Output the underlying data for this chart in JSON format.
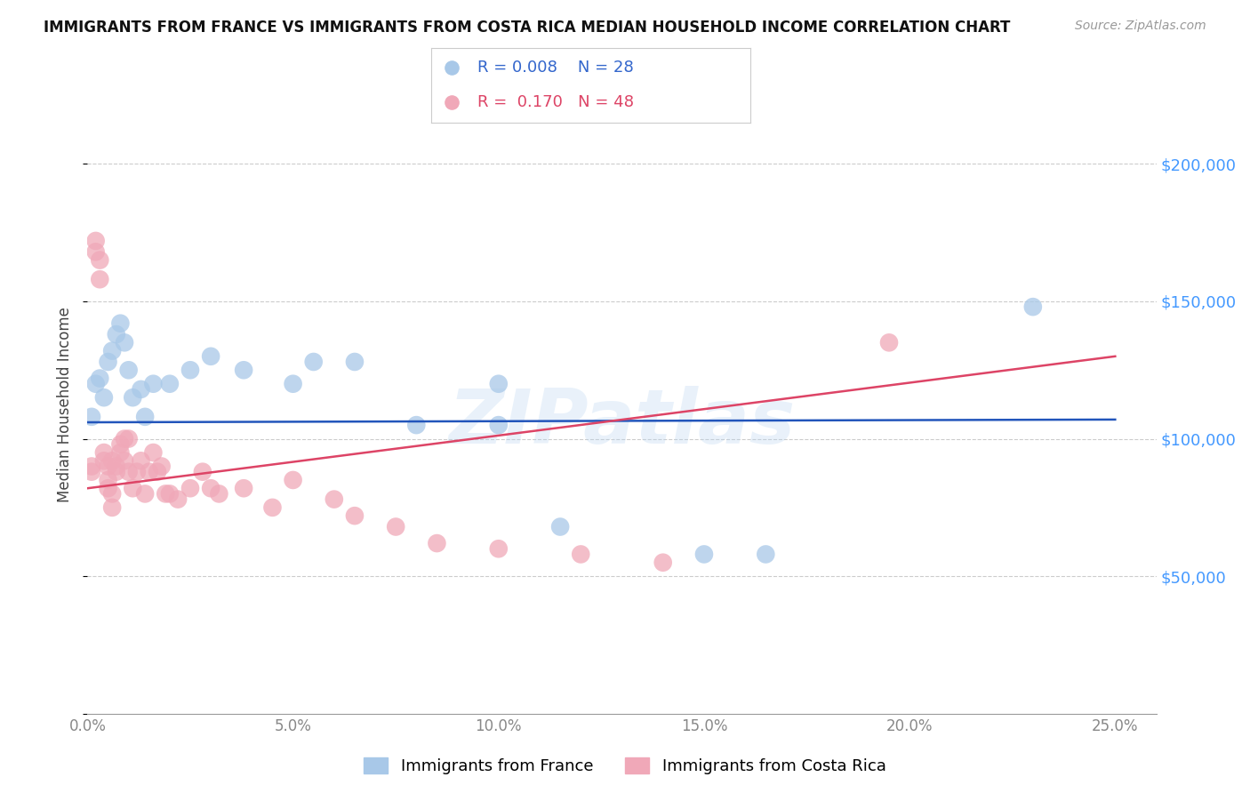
{
  "title": "IMMIGRANTS FROM FRANCE VS IMMIGRANTS FROM COSTA RICA MEDIAN HOUSEHOLD INCOME CORRELATION CHART",
  "source": "Source: ZipAtlas.com",
  "ylabel": "Median Household Income",
  "yticks": [
    0,
    50000,
    100000,
    150000,
    200000
  ],
  "ytick_labels": [
    "",
    "$50,000",
    "$100,000",
    "$150,000",
    "$200,000"
  ],
  "xticks": [
    0.0,
    0.05,
    0.1,
    0.15,
    0.2,
    0.25
  ],
  "xtick_labels": [
    "0.0%",
    "5.0%",
    "10.0%",
    "15.0%",
    "20.0%",
    "25.0%"
  ],
  "xlim": [
    0.0,
    0.26
  ],
  "ylim": [
    0,
    225000
  ],
  "france_color": "#a8c8e8",
  "costa_rica_color": "#f0a8b8",
  "france_line_color": "#2255bb",
  "costa_rica_line_color": "#dd4466",
  "france_R": "0.008",
  "france_N": "28",
  "costa_rica_R": "0.170",
  "costa_rica_N": "48",
  "watermark": "ZIPatlas",
  "france_line_y0": 106000,
  "france_line_y1": 107000,
  "costa_rica_line_y0": 82000,
  "costa_rica_line_y1": 130000,
  "france_x": [
    0.001,
    0.002,
    0.003,
    0.004,
    0.005,
    0.006,
    0.007,
    0.008,
    0.009,
    0.01,
    0.011,
    0.013,
    0.014,
    0.016,
    0.02,
    0.025,
    0.03,
    0.038,
    0.05,
    0.055,
    0.065,
    0.08,
    0.1,
    0.115,
    0.15,
    0.165,
    0.23,
    0.1
  ],
  "france_y": [
    108000,
    120000,
    122000,
    115000,
    128000,
    132000,
    138000,
    142000,
    135000,
    125000,
    115000,
    118000,
    108000,
    120000,
    120000,
    125000,
    130000,
    125000,
    120000,
    128000,
    128000,
    105000,
    120000,
    68000,
    58000,
    58000,
    148000,
    105000
  ],
  "costa_rica_x": [
    0.001,
    0.001,
    0.002,
    0.002,
    0.003,
    0.003,
    0.004,
    0.004,
    0.005,
    0.005,
    0.005,
    0.006,
    0.006,
    0.006,
    0.007,
    0.007,
    0.008,
    0.008,
    0.009,
    0.009,
    0.01,
    0.01,
    0.011,
    0.012,
    0.013,
    0.014,
    0.015,
    0.016,
    0.017,
    0.018,
    0.019,
    0.02,
    0.022,
    0.025,
    0.028,
    0.03,
    0.032,
    0.038,
    0.045,
    0.05,
    0.06,
    0.065,
    0.075,
    0.085,
    0.1,
    0.12,
    0.14,
    0.195
  ],
  "costa_rica_y": [
    88000,
    90000,
    168000,
    172000,
    158000,
    165000,
    92000,
    95000,
    85000,
    90000,
    82000,
    80000,
    75000,
    92000,
    88000,
    90000,
    95000,
    98000,
    100000,
    92000,
    100000,
    88000,
    82000,
    88000,
    92000,
    80000,
    88000,
    95000,
    88000,
    90000,
    80000,
    80000,
    78000,
    82000,
    88000,
    82000,
    80000,
    82000,
    75000,
    85000,
    78000,
    72000,
    68000,
    62000,
    60000,
    58000,
    55000,
    135000
  ]
}
